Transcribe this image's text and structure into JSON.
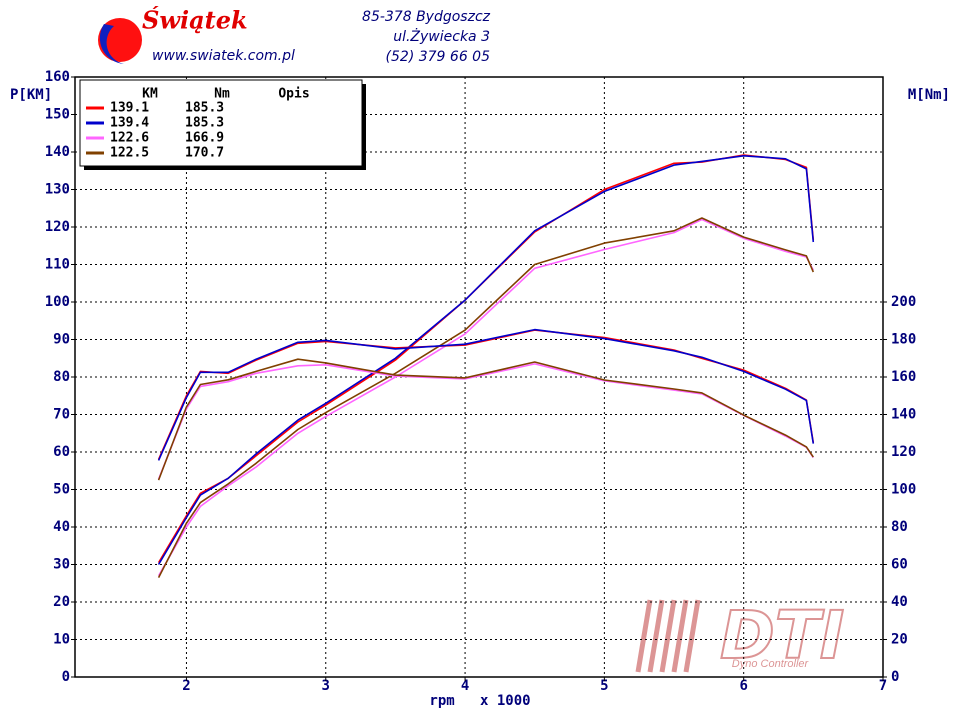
{
  "header": {
    "brand": "Świątek",
    "url": "www.swiatek.com.pl",
    "address": [
      "85-378 Bydgoszcz",
      "ul.Żywiecka 3",
      "(52) 379 66 05"
    ]
  },
  "watermark": {
    "logo": "DTI",
    "subtitle": "Dyno Controller"
  },
  "chart_data": {
    "type": "line",
    "ylabel": "P[KM]",
    "y2label": "M[Nm]",
    "xlabel": "rpm   x 1000",
    "xlim": [
      1.2,
      7
    ],
    "xticks": [
      2,
      3,
      4,
      5,
      6,
      7
    ],
    "ylim": [
      0,
      160
    ],
    "yticks": [
      0,
      10,
      20,
      30,
      40,
      50,
      60,
      70,
      80,
      90,
      100,
      110,
      120,
      130,
      140,
      150,
      160
    ],
    "y2lim": [
      0,
      320
    ],
    "y2ticks": [
      0,
      20,
      40,
      60,
      80,
      100,
      120,
      140,
      160,
      180,
      200
    ],
    "grid": true,
    "x": [
      1.8,
      2.0,
      2.1,
      2.3,
      2.5,
      2.8,
      3.0,
      3.5,
      4.0,
      4.5,
      5.0,
      5.5,
      5.7,
      6.0,
      6.3,
      6.45,
      6.5
    ],
    "series": [
      {
        "color": "#ff0000",
        "values": [
          30.5,
          43,
          49,
          53,
          59,
          68,
          72.5,
          84.5,
          100.5,
          118.7,
          130,
          137,
          137.3,
          139.2,
          138,
          135.9,
          116.5
        ]
      },
      {
        "color": "#0000cc",
        "values": [
          30,
          42.5,
          48.5,
          53,
          59.5,
          68.5,
          73,
          85,
          100.5,
          119,
          129.5,
          136.5,
          137.5,
          139,
          138.2,
          135.5,
          116
        ]
      },
      {
        "color": "#ff66ff",
        "values": [
          27,
          40,
          45.5,
          51,
          56,
          65,
          69.5,
          80,
          91.5,
          109,
          114,
          118.5,
          122,
          117,
          113.5,
          112,
          108.5
        ]
      },
      {
        "color": "#804000",
        "values": [
          26.5,
          41,
          46.5,
          51.5,
          57,
          66,
          70.5,
          81,
          92.5,
          110,
          115.7,
          119,
          122.4,
          117.3,
          113.9,
          112.3,
          108
        ]
      },
      {
        "axis": "y2",
        "color": "#ff0000",
        "values": [
          116,
          150,
          163,
          162,
          169,
          178,
          179,
          175.5,
          177,
          185,
          181,
          174.4,
          170,
          163.7,
          154,
          147.7,
          125
        ]
      },
      {
        "axis": "y2",
        "color": "#0000cc",
        "values": [
          115.5,
          149,
          162.5,
          162.5,
          169.5,
          178.5,
          179.5,
          175,
          177.5,
          185.3,
          180.5,
          174,
          170.5,
          163,
          153.5,
          147.5,
          124.5
        ]
      },
      {
        "axis": "y2",
        "color": "#ff66ff",
        "values": [
          105.5,
          143,
          155,
          157.5,
          162,
          166,
          166.5,
          160.5,
          159,
          167,
          158,
          153,
          151,
          139.5,
          128.5,
          122.5,
          117
        ]
      },
      {
        "axis": "y2",
        "color": "#804000",
        "values": [
          105,
          144,
          156,
          158.5,
          163,
          169.5,
          167.5,
          161,
          159.5,
          168,
          158.4,
          153.6,
          151.5,
          139.7,
          129,
          122.7,
          117.3
        ]
      }
    ],
    "legend": {
      "columns": [
        "KM",
        "Nm",
        "Opis"
      ],
      "rows": [
        {
          "km": 139.1,
          "nm": 185.3
        },
        {
          "km": 139.4,
          "nm": 185.3
        },
        {
          "km": 122.6,
          "nm": 166.9
        },
        {
          "km": 122.5,
          "nm": 170.7
        }
      ]
    }
  }
}
